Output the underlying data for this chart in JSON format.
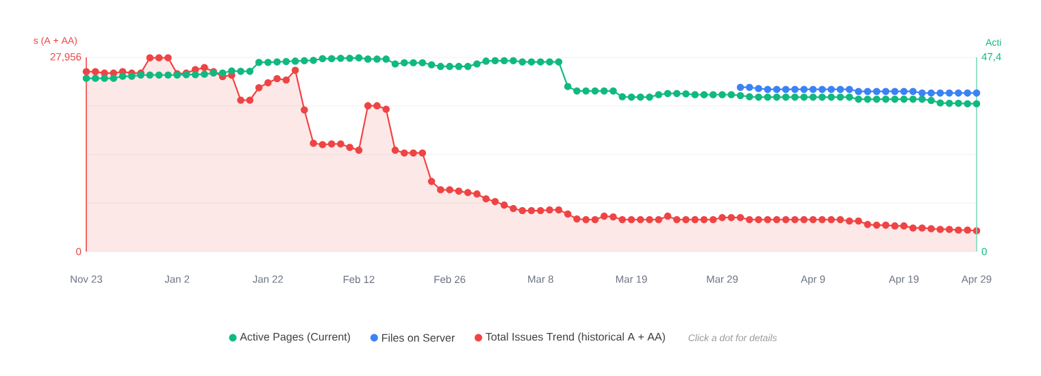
{
  "chart_data": {
    "type": "line",
    "y2label": "Acti",
    "ylabel": "s (A + AA)",
    "categories": [
      "Nov 23",
      null,
      null,
      null,
      null,
      null,
      null,
      null,
      null,
      null,
      "Jan 2",
      null,
      null,
      null,
      null,
      null,
      null,
      null,
      null,
      null,
      "Jan 22",
      null,
      null,
      null,
      null,
      null,
      null,
      null,
      null,
      null,
      "Feb 12",
      null,
      null,
      null,
      null,
      null,
      null,
      null,
      null,
      null,
      "Feb 26",
      null,
      null,
      null,
      null,
      null,
      null,
      null,
      null,
      null,
      "Mar 8",
      null,
      null,
      null,
      null,
      null,
      null,
      null,
      null,
      null,
      "Mar 19",
      null,
      null,
      null,
      null,
      null,
      null,
      null,
      null,
      null,
      "Mar 29",
      null,
      null,
      null,
      null,
      null,
      null,
      null,
      null,
      null,
      "Apr 9",
      null,
      null,
      null,
      null,
      null,
      null,
      null,
      null,
      null,
      "Apr 19",
      null,
      null,
      null,
      null,
      null,
      null,
      null,
      "Apr 29"
    ],
    "series": [
      {
        "name": "Active Pages (Current)",
        "color": "#10b981",
        "axis": "y2",
        "values": [
          42.3,
          42.3,
          42.3,
          42.3,
          42.8,
          42.8,
          43.1,
          43.1,
          43.1,
          43.1,
          43.1,
          43.2,
          43.2,
          43.3,
          43.6,
          43.6,
          44.1,
          44.0,
          44.0,
          46.2,
          46.2,
          46.3,
          46.4,
          46.5,
          46.6,
          46.7,
          47.1,
          47.1,
          47.2,
          47.2,
          47.3,
          47.0,
          47.0,
          47.0,
          45.8,
          46.1,
          46.1,
          46.1,
          45.6,
          45.2,
          45.2,
          45.2,
          45.2,
          45.8,
          46.5,
          46.6,
          46.6,
          46.6,
          46.3,
          46.3,
          46.3,
          46.3,
          46.3,
          40.3,
          39.2,
          39.2,
          39.2,
          39.2,
          39.2,
          37.8,
          37.7,
          37.7,
          37.7,
          38.3,
          38.6,
          38.6,
          38.5,
          38.3,
          38.3,
          38.3,
          38.3,
          38.3,
          38.1,
          37.8,
          37.7,
          37.7,
          37.7,
          37.7,
          37.7,
          37.7,
          37.7,
          37.7,
          37.7,
          37.7,
          37.7,
          37.2,
          37.2,
          37.2,
          37.2,
          37.2,
          37.2,
          37.2,
          37.2,
          36.9,
          36.3,
          36.2,
          36.2,
          36.1,
          36.1
        ]
      },
      {
        "name": "Files on Server",
        "color": "#3b82f6",
        "axis": "y2",
        "values": [
          null,
          null,
          null,
          null,
          null,
          null,
          null,
          null,
          null,
          null,
          null,
          null,
          null,
          null,
          null,
          null,
          null,
          null,
          null,
          null,
          null,
          null,
          null,
          null,
          null,
          null,
          null,
          null,
          null,
          null,
          null,
          null,
          null,
          null,
          null,
          null,
          null,
          null,
          null,
          null,
          null,
          null,
          null,
          null,
          null,
          null,
          null,
          null,
          null,
          null,
          null,
          null,
          null,
          null,
          null,
          null,
          null,
          null,
          null,
          null,
          null,
          null,
          null,
          null,
          null,
          null,
          null,
          null,
          null,
          null,
          null,
          null,
          40.1,
          40.1,
          39.8,
          39.6,
          39.6,
          39.6,
          39.6,
          39.6,
          39.6,
          39.6,
          39.6,
          39.6,
          39.6,
          39.1,
          39.1,
          39.1,
          39.1,
          39.1,
          39.1,
          39.1,
          38.7,
          38.7,
          38.7,
          38.7,
          38.7,
          38.7,
          38.7
        ]
      },
      {
        "name": "Total Issues Trend (historical A + AA)",
        "color": "#ef4444",
        "type": "area",
        "values": [
          25900,
          25900,
          25700,
          25700,
          25900,
          25700,
          25700,
          27900,
          27900,
          27900,
          25600,
          25700,
          26200,
          26500,
          25900,
          25200,
          25400,
          21800,
          21800,
          23600,
          24300,
          24900,
          24700,
          26100,
          20400,
          15600,
          15400,
          15500,
          15500,
          15000,
          14600,
          21000,
          21000,
          20500,
          14600,
          14200,
          14200,
          14200,
          10100,
          8900,
          8900,
          8700,
          8500,
          8300,
          7600,
          7200,
          6700,
          6200,
          5900,
          5900,
          5900,
          6000,
          6000,
          5400,
          4700,
          4600,
          4600,
          5100,
          5000,
          4600,
          4600,
          4600,
          4600,
          4600,
          5100,
          4600,
          4600,
          4600,
          4600,
          4600,
          4900,
          4900,
          4900,
          4600,
          4600,
          4600,
          4600,
          4600,
          4600,
          4600,
          4600,
          4600,
          4600,
          4600,
          4400,
          4400,
          3900,
          3800,
          3800,
          3700,
          3700,
          3400,
          3400,
          3300,
          3200,
          3200,
          3100,
          3100,
          3000
        ]
      }
    ],
    "ylim": [
      0,
      27956
    ],
    "yticks": [
      0,
      {
        "value": 6989,
        "label": null
      },
      {
        "value": 13978,
        "label": null
      },
      {
        "value": 20967,
        "label": null
      },
      {
        "value": 27956,
        "label": "27,956"
      }
    ],
    "y2lim": [
      0,
      47.4
    ],
    "y2ticks": [
      0,
      {
        "value": 47.4,
        "label": "47,4"
      }
    ],
    "grid": "y",
    "marker": "circle",
    "legend": "bottom",
    "annotations": [
      "Click a dot for details"
    ]
  }
}
